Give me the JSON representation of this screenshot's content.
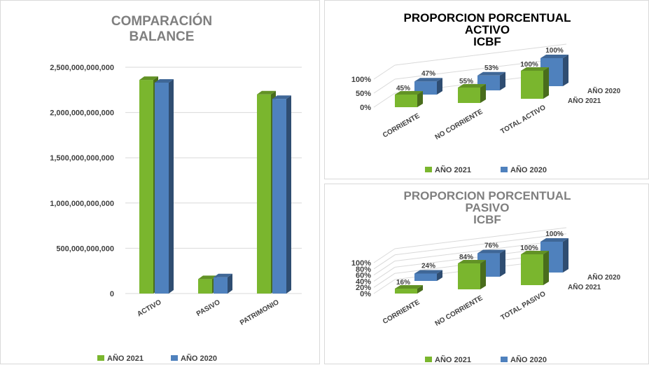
{
  "chart_data": [
    {
      "type": "bar",
      "title": "COMPARACIÓN BALANCE",
      "categories": [
        "ACTIVO",
        "PASIVO",
        "PATRIMONIO"
      ],
      "series": [
        {
          "name": "AÑO 2021",
          "values": [
            2360000000000,
            160000000000,
            2200000000000
          ],
          "color": "#7ab62e"
        },
        {
          "name": "AÑO 2020",
          "values": [
            2330000000000,
            180000000000,
            2150000000000
          ],
          "color": "#4f81bd"
        }
      ],
      "ylim": [
        0,
        2500000000000
      ],
      "yticks": [
        "0",
        "500,000,000,000",
        "1,000,000,000,000",
        "1,500,000,000,000",
        "2,000,000,000,000",
        "2,500,000,000,000"
      ],
      "grid": true,
      "legend": "bottom",
      "style": "3d-clustered-column"
    },
    {
      "type": "bar",
      "title": "PROPORCION PORCENTUAL ACTIVO ICBF",
      "categories": [
        "CORRIENTE",
        "NO CORRIENTE",
        "TOTAL ACTIVO"
      ],
      "series": [
        {
          "name": "AÑO 2021",
          "values": [
            45,
            55,
            100
          ],
          "labels": [
            "45%",
            "55%",
            "100%"
          ],
          "color": "#7ab62e"
        },
        {
          "name": "AÑO 2020",
          "values": [
            47,
            53,
            100
          ],
          "labels": [
            "47%",
            "53%",
            "100%"
          ],
          "color": "#4f81bd"
        }
      ],
      "ylim": [
        0,
        100
      ],
      "yticks": [
        "0%",
        "50%",
        "100%"
      ],
      "legend": "bottom",
      "style": "3d-column"
    },
    {
      "type": "bar",
      "title": "PROPORCION PORCENTUAL PASIVO ICBF",
      "categories": [
        "CORRIENTE",
        "NO CORRIENTE",
        "TOTAL PASIVO"
      ],
      "series": [
        {
          "name": "AÑO 2021",
          "values": [
            16,
            84,
            100
          ],
          "labels": [
            "16%",
            "84%",
            "100%"
          ],
          "color": "#7ab62e"
        },
        {
          "name": "AÑO 2020",
          "values": [
            24,
            76,
            100
          ],
          "labels": [
            "24%",
            "76%",
            "100%"
          ],
          "color": "#4f81bd"
        }
      ],
      "ylim": [
        0,
        100
      ],
      "yticks": [
        "0%",
        "20%",
        "40%",
        "60%",
        "80%",
        "100%"
      ],
      "legend": "bottom",
      "style": "3d-column"
    }
  ]
}
